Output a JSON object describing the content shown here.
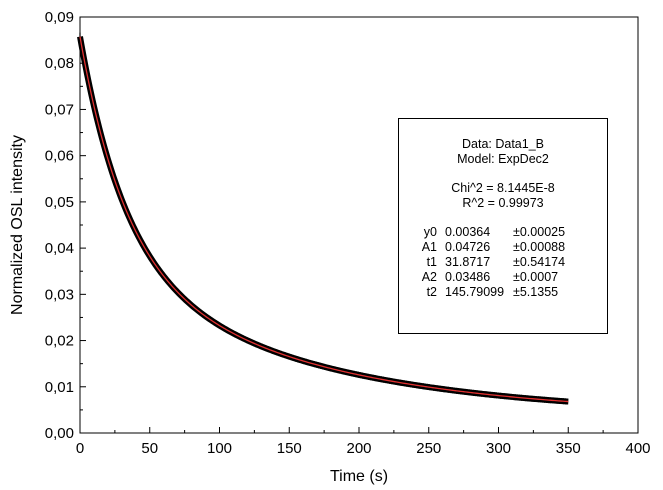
{
  "chart_data": {
    "type": "scatter",
    "title": "",
    "xlabel": "Time (s)",
    "ylabel": "Normalized OSL intensity",
    "xlim": [
      0,
      400
    ],
    "ylim": [
      0,
      0.09
    ],
    "x_ticks": [
      "0",
      "50",
      "100",
      "150",
      "200",
      "250",
      "300",
      "350",
      "400"
    ],
    "y_ticks": [
      "0,00",
      "0,01",
      "0,02",
      "0,03",
      "0,04",
      "0,05",
      "0,06",
      "0,07",
      "0,08",
      "0,09"
    ],
    "series": [
      {
        "kind": "data",
        "color": "#000000",
        "x_range": [
          0,
          350
        ],
        "values": [
          [
            0,
            0.0853
          ],
          [
            10,
            0.0725
          ],
          [
            20,
            0.0627
          ],
          [
            30,
            0.0552
          ],
          [
            40,
            0.0491
          ],
          [
            50,
            0.0441
          ],
          [
            60,
            0.0398
          ],
          [
            80,
            0.033
          ],
          [
            100,
            0.0278
          ],
          [
            125,
            0.023
          ],
          [
            150,
            0.0195
          ],
          [
            175,
            0.0168
          ],
          [
            200,
            0.0146
          ],
          [
            225,
            0.0128
          ],
          [
            250,
            0.0113
          ],
          [
            275,
            0.01
          ],
          [
            300,
            0.0089
          ],
          [
            325,
            0.0079
          ],
          [
            350,
            0.0071
          ]
        ]
      },
      {
        "kind": "fit",
        "color": "#e03030",
        "model": "y0 + A1*exp(-x/t1) + A2*exp(-x/t2)",
        "params": {
          "y0": 0.00364,
          "A1": 0.04726,
          "t1": 31.8717,
          "A2": 0.03486,
          "t2": 145.79099
        }
      }
    ],
    "grid": false
  },
  "fit_box": {
    "data_line": "Data: Data1_B",
    "model_line": "Model: ExpDec2",
    "chi_line": "Chi^2 =  8.1445E-8",
    "r_line": "R^2  =  0.99973",
    "params": [
      {
        "name": "y0",
        "value": "0.00364",
        "error": "±0.00025"
      },
      {
        "name": "A1",
        "value": "0.04726",
        "error": "±0.00088"
      },
      {
        "name": "t1",
        "value": "31.8717",
        "error": "±0.54174"
      },
      {
        "name": "A2",
        "value": "0.03486",
        "error": "±0.0007"
      },
      {
        "name": "t2",
        "value": "145.79099",
        "error": "±5.1355"
      }
    ]
  }
}
